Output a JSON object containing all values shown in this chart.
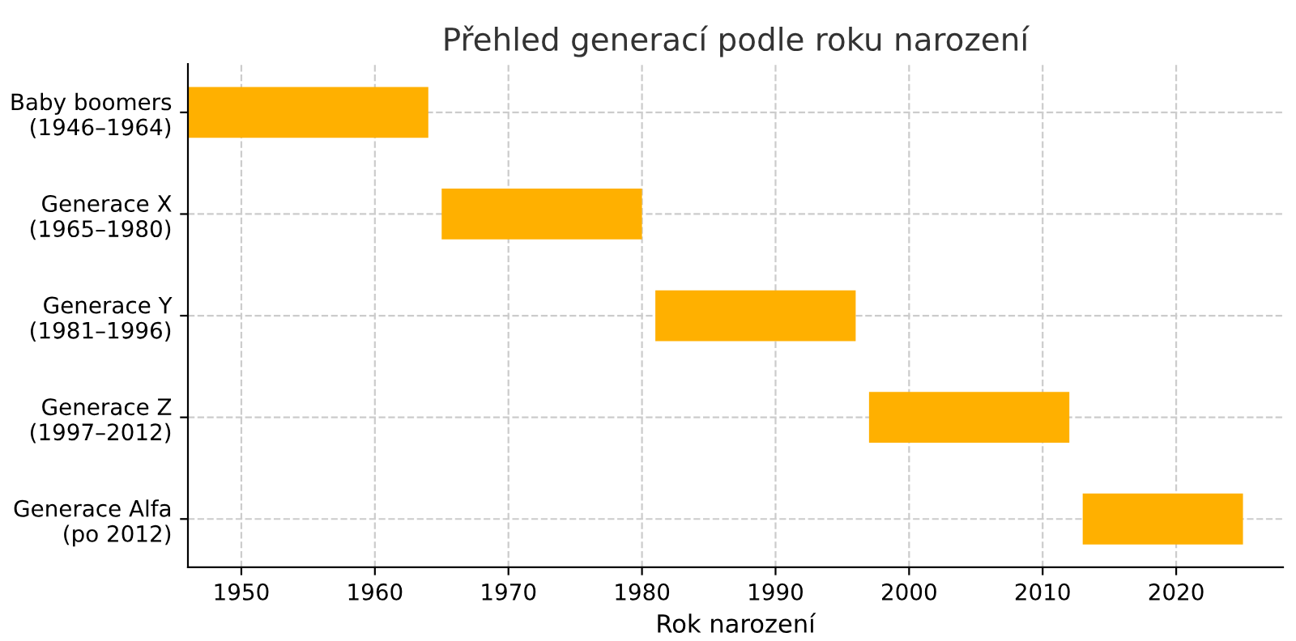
{
  "chart_data": {
    "type": "bar",
    "orientation": "horizontal",
    "title": "Přehled generací podle roku narození",
    "xlabel": "Rok narození",
    "categories": [
      "Baby boomers\n(1946–1964)",
      "Generace X\n(1965–1980)",
      "Generace Y\n(1981–1996)",
      "Generace Z\n(1997–2012)",
      "Generace Alfa\n(po 2012)"
    ],
    "base": [
      1946,
      1965,
      1981,
      1997,
      2013
    ],
    "values": [
      18,
      15,
      15,
      15,
      12
    ],
    "color": "#ffb000",
    "xlim": [
      1946,
      2028
    ],
    "xticks": [
      1950,
      1960,
      1970,
      1980,
      1990,
      2000,
      2010,
      2020
    ],
    "grid": true,
    "line_style": "dashed"
  }
}
